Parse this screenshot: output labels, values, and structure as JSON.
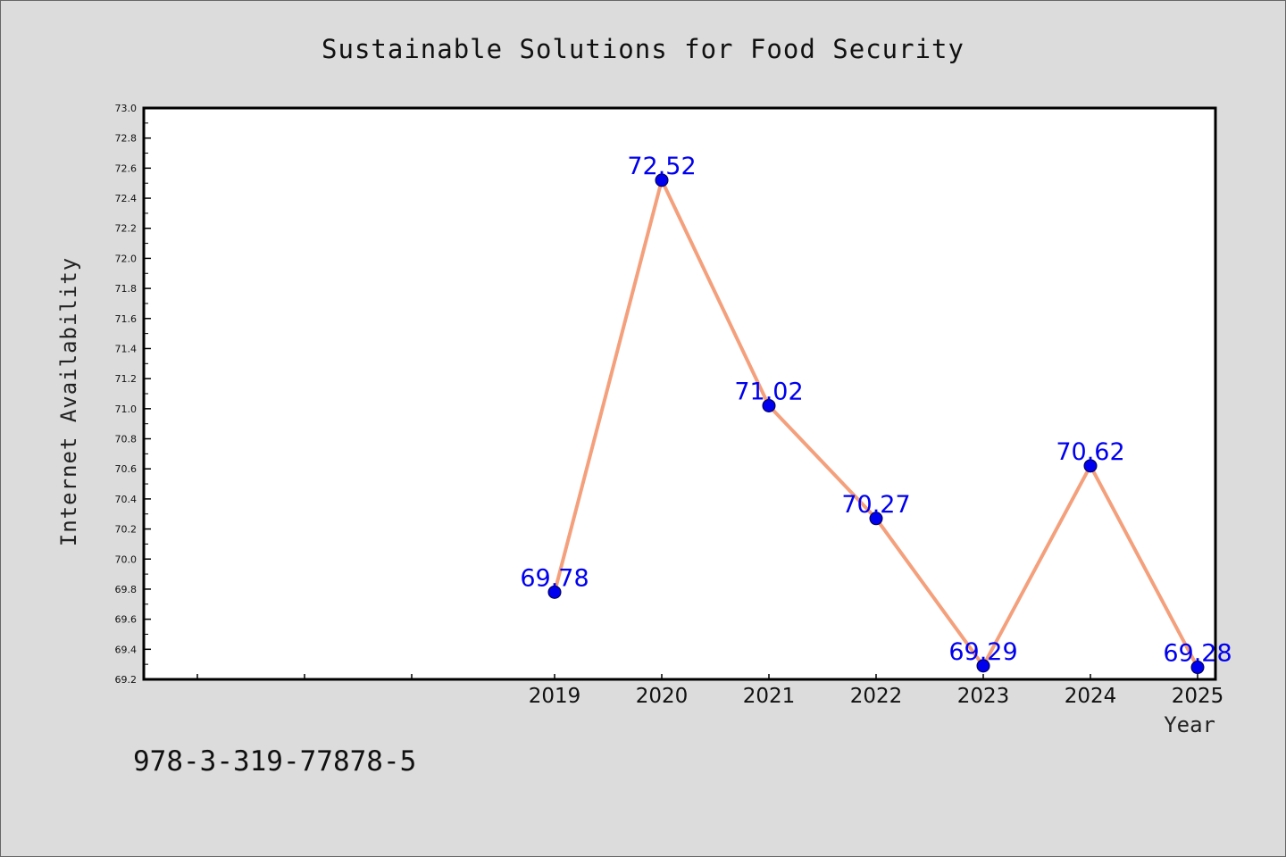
{
  "chart_data": {
    "type": "line",
    "title": "Sustainable Solutions for Food Security",
    "xlabel": "Year",
    "ylabel": "Internet Availability",
    "categories": [
      "2019",
      "2020",
      "2021",
      "2022",
      "2023",
      "2024",
      "2025"
    ],
    "series": [
      {
        "values": [
          69.78,
          72.52,
          71.02,
          70.27,
          69.29,
          70.62,
          69.28
        ],
        "labels": [
          "69.78",
          "72.52",
          "71.02",
          "70.27",
          "69.29",
          "70.62",
          "69.28"
        ]
      }
    ],
    "ylim": [
      69.2,
      73.0
    ],
    "yticks": [
      "69.2",
      "69.4",
      "69.6",
      "69.8",
      "70.0",
      "70.2",
      "70.4",
      "70.6",
      "70.8",
      "71.0",
      "71.2",
      "71.4",
      "71.6",
      "71.8",
      "72.0",
      "72.2",
      "72.4",
      "72.6",
      "72.8",
      "73.0"
    ],
    "grid": false,
    "legend": "none",
    "colors": {
      "line": "#f4a07c",
      "marker": "#0000ee",
      "label": "#0000ee",
      "background": "#dcdcdc",
      "plot_background": "#ffffff"
    }
  },
  "footer": {
    "isbn": "978-3-319-77878-5"
  }
}
